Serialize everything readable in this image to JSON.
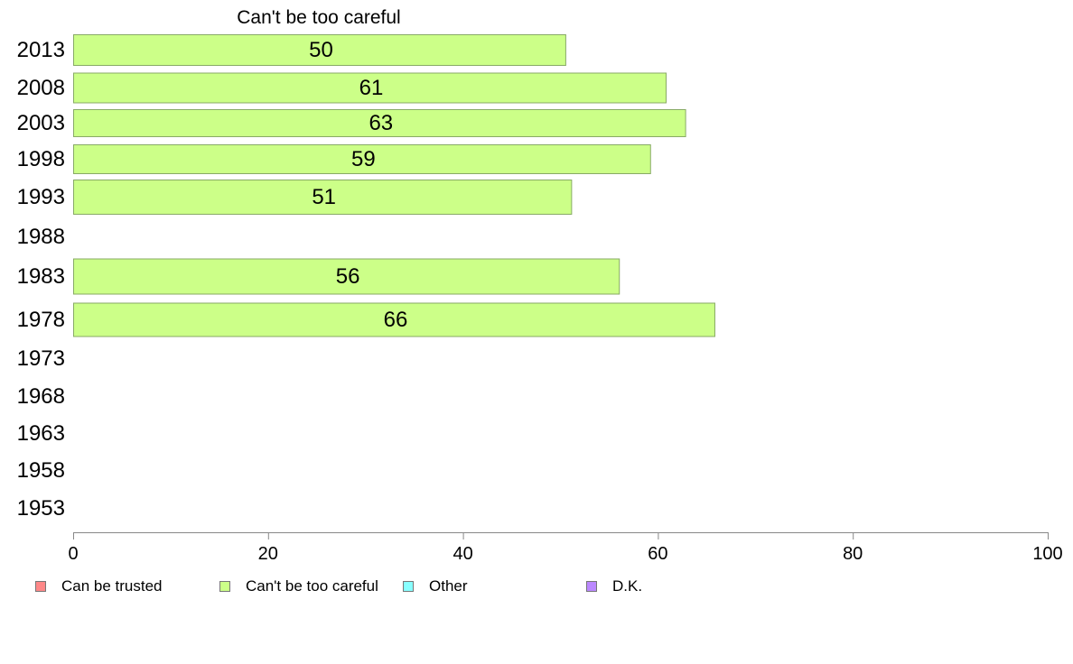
{
  "chart_data": {
    "type": "bar",
    "orientation": "horizontal",
    "title": "Can't be too careful",
    "categories": [
      "2013",
      "2008",
      "2003",
      "1998",
      "1993",
      "1988",
      "1983",
      "1978",
      "1973",
      "1968",
      "1963",
      "1958",
      "1953"
    ],
    "series": [
      {
        "name": "Can't be too careful",
        "values": [
          50.5,
          60.8,
          62.8,
          59.2,
          51.1,
          null,
          56.0,
          65.8,
          null,
          null,
          null,
          null,
          null
        ],
        "labels": [
          "50",
          "61",
          "63",
          "59",
          "51",
          "",
          "56",
          "66",
          "",
          "",
          "",
          "",
          ""
        ],
        "color": "#ccff88"
      }
    ],
    "xlim": [
      0,
      100
    ],
    "xticks": [
      "0",
      "20",
      "40",
      "60",
      "80",
      "100"
    ],
    "xlabel": "",
    "ylabel": "",
    "grid": false,
    "legend": {
      "position": "bottom",
      "items": [
        {
          "label": "Can be trusted",
          "color": "#ff8888"
        },
        {
          "label": "Can't be too careful",
          "color": "#ccff88"
        },
        {
          "label": "Other",
          "color": "#88ffff"
        },
        {
          "label": "D.K.",
          "color": "#bb88ff"
        }
      ]
    }
  }
}
